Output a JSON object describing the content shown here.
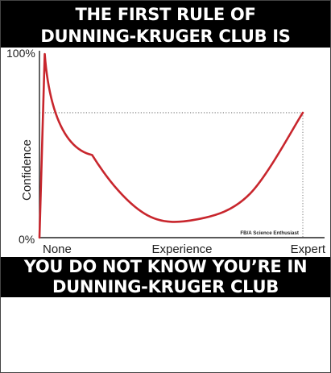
{
  "header": {
    "line1": "THE FIRST RULE OF",
    "line2": "DUNNING-KRUGER CLUB IS"
  },
  "footer": {
    "line1": "YOU DO NOT KNOW YOU’RE IN",
    "line2": "DUNNING-KRUGER CLUB"
  },
  "chart_data": {
    "type": "line",
    "title": "",
    "xlabel": "",
    "ylabel": "Confidence",
    "x_tick_labels": [
      "None",
      "Experience",
      "Expert"
    ],
    "y_tick_labels": [
      "0%",
      "100%"
    ],
    "ylim": [
      0,
      100
    ],
    "grid": false,
    "credit": "FB/A Science Enthusiast",
    "series": [
      {
        "color": "#c8262d",
        "x": [
          0,
          0.02,
          0.2,
          0.4,
          0.6,
          0.8,
          1.0
        ],
        "y": [
          0,
          100,
          45,
          13,
          10,
          24,
          68
        ]
      }
    ],
    "reference_line": {
      "y": 68,
      "style": "dotted"
    }
  }
}
